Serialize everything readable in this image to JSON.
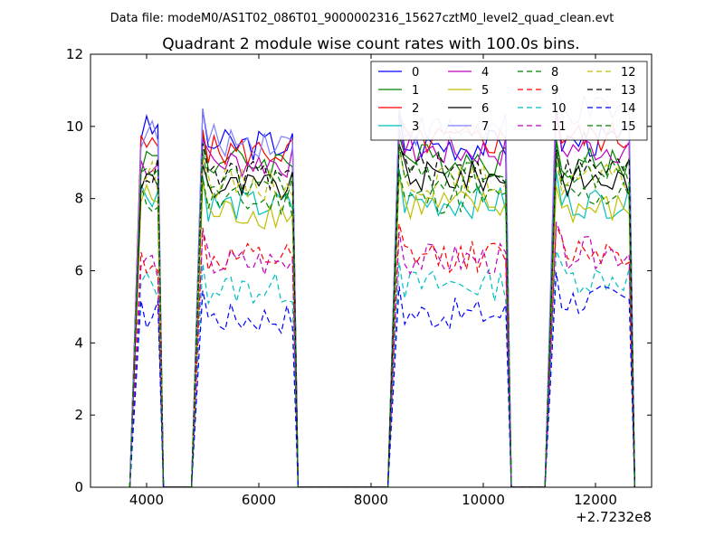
{
  "figure": {
    "header": "Data file: modeM0/AS1T02_086T01_9000002316_15627cztM0_level2_quad_clean.evt"
  },
  "chart_data": {
    "type": "line",
    "title": "Quadrant 2 module wise count rates with 100.0s bins.",
    "xlabel": "",
    "ylabel": "",
    "x_offset_label": "+2.7232e8",
    "xlim": [
      3000,
      13000
    ],
    "ylim": [
      0,
      12
    ],
    "xticks": [
      4000,
      6000,
      8000,
      10000,
      12000
    ],
    "yticks": [
      0,
      2,
      4,
      6,
      8,
      10,
      12
    ],
    "xtick_labels": [
      "4000",
      "6000",
      "8000",
      "10000",
      "12000"
    ],
    "ytick_labels": [
      "0",
      "2",
      "4",
      "6",
      "8",
      "10",
      "12"
    ],
    "grid": false,
    "legend": {
      "placement": "top-right",
      "columns": 4
    },
    "segments": [
      {
        "start": 3900,
        "end": 4200
      },
      {
        "start": 5000,
        "end": 6600
      },
      {
        "start": 8500,
        "end": 10400
      },
      {
        "start": 11300,
        "end": 12600
      }
    ],
    "gap_value": 0,
    "series": [
      {
        "name": "0",
        "color": "#0000ff",
        "dash": "solid",
        "levels": [
          9.9,
          9.5,
          9.5,
          9.6
        ]
      },
      {
        "name": "1",
        "color": "#008000",
        "dash": "solid",
        "levels": [
          9.1,
          9.0,
          9.1,
          9.0
        ]
      },
      {
        "name": "2",
        "color": "#ff0000",
        "dash": "solid",
        "levels": [
          9.4,
          9.3,
          9.6,
          9.7
        ]
      },
      {
        "name": "3",
        "color": "#00bfbf",
        "dash": "solid",
        "levels": [
          8.2,
          7.8,
          7.9,
          7.9
        ]
      },
      {
        "name": "4",
        "color": "#bf00bf",
        "dash": "solid",
        "levels": [
          9.0,
          9.0,
          9.3,
          9.4
        ]
      },
      {
        "name": "5",
        "color": "#bfbf00",
        "dash": "solid",
        "levels": [
          8.0,
          7.6,
          7.8,
          7.7
        ]
      },
      {
        "name": "6",
        "color": "#000000",
        "dash": "solid",
        "levels": [
          8.5,
          8.3,
          8.6,
          8.5
        ]
      },
      {
        "name": "7",
        "color": "#7f7fff",
        "dash": "solid",
        "levels": [
          9.8,
          9.6,
          9.9,
          10.4
        ]
      },
      {
        "name": "8",
        "color": "#008000",
        "dash": "dashed",
        "levels": [
          8.0,
          7.9,
          8.0,
          8.1
        ]
      },
      {
        "name": "9",
        "color": "#ff0000",
        "dash": "dashed",
        "levels": [
          6.3,
          6.3,
          6.4,
          6.6
        ]
      },
      {
        "name": "10",
        "color": "#00bfbf",
        "dash": "dashed",
        "levels": [
          5.6,
          5.5,
          5.6,
          5.8
        ]
      },
      {
        "name": "11",
        "color": "#bf00bf",
        "dash": "dashed",
        "levels": [
          6.2,
          6.2,
          6.3,
          6.5
        ]
      },
      {
        "name": "12",
        "color": "#bfbf00",
        "dash": "dashed",
        "levels": [
          8.6,
          8.4,
          8.5,
          8.5
        ]
      },
      {
        "name": "13",
        "color": "#000000",
        "dash": "dashed",
        "levels": [
          8.7,
          8.6,
          8.8,
          8.8
        ]
      },
      {
        "name": "14",
        "color": "#0000ff",
        "dash": "dashed",
        "levels": [
          4.8,
          4.7,
          4.8,
          5.2
        ]
      },
      {
        "name": "15",
        "color": "#008000",
        "dash": "dashed",
        "levels": [
          8.5,
          8.4,
          8.6,
          8.7
        ]
      }
    ]
  }
}
